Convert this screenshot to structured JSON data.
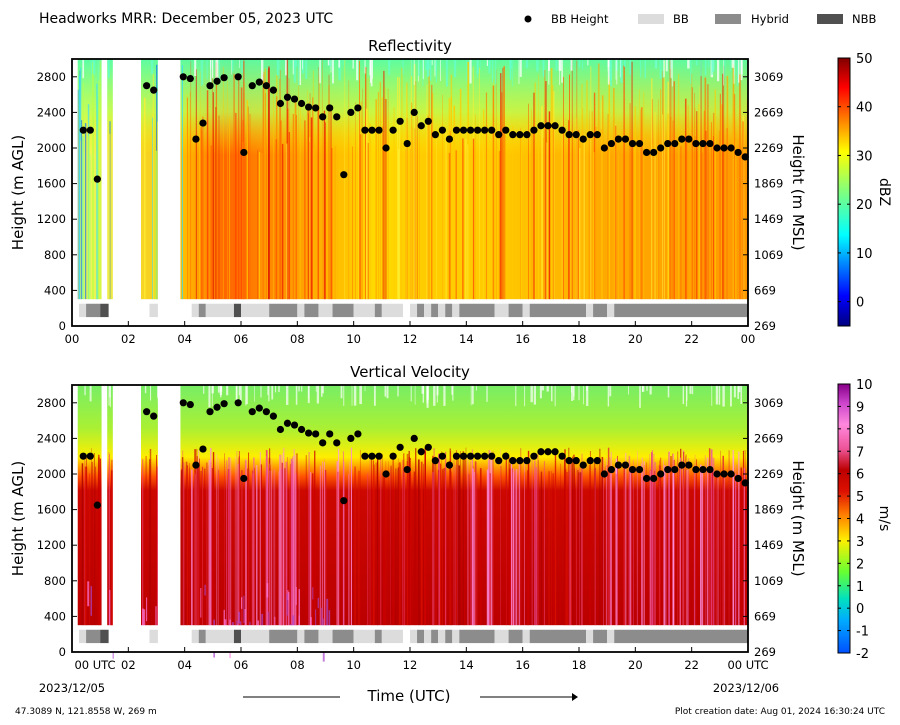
{
  "header": {
    "title": "Headworks MRR:  December 05, 2023 UTC",
    "legend": [
      {
        "label": "BB Height",
        "kind": "dot",
        "color": "#000000"
      },
      {
        "label": "BB",
        "kind": "rect",
        "color": "#dcdcdc"
      },
      {
        "label": "Hybrid",
        "kind": "rect",
        "color": "#8c8c8c"
      },
      {
        "label": "NBB",
        "kind": "rect",
        "color": "#505050"
      }
    ]
  },
  "chart_data": [
    {
      "type": "heatmap",
      "title": "Reflectivity",
      "ylabel": "Height (m AGL)",
      "y2label": "Height (m MSL)",
      "colorbar_label": "dBZ",
      "ylim": [
        0,
        3000
      ],
      "yticks": [
        0,
        400,
        800,
        1200,
        1600,
        2000,
        2400,
        2800
      ],
      "y2ticks": [
        269,
        669,
        1069,
        1469,
        1869,
        2269,
        2669,
        3069
      ],
      "xlim": [
        0,
        24
      ],
      "xtick_labels": [
        "00",
        "02",
        "04",
        "06",
        "08",
        "10",
        "12",
        "14",
        "16",
        "18",
        "20",
        "22",
        "00"
      ],
      "colorbar": {
        "min": -5,
        "max": 50,
        "ticks": [
          0,
          10,
          20,
          30,
          40,
          50
        ]
      },
      "bb_height_m_agl": [
        [
          0.4,
          2200
        ],
        [
          0.65,
          2200
        ],
        [
          0.9,
          1650
        ],
        [
          2.65,
          2700
        ],
        [
          2.9,
          2650
        ],
        [
          3.95,
          2800
        ],
        [
          4.2,
          2780
        ],
        [
          4.4,
          2100
        ],
        [
          4.65,
          2280
        ],
        [
          4.9,
          2700
        ],
        [
          5.15,
          2750
        ],
        [
          5.4,
          2790
        ],
        [
          5.9,
          2800
        ],
        [
          6.1,
          1950
        ],
        [
          6.4,
          2700
        ],
        [
          6.65,
          2740
        ],
        [
          6.9,
          2700
        ],
        [
          7.15,
          2650
        ],
        [
          7.4,
          2500
        ],
        [
          7.65,
          2570
        ],
        [
          7.9,
          2550
        ],
        [
          8.15,
          2500
        ],
        [
          8.4,
          2460
        ],
        [
          8.65,
          2450
        ],
        [
          8.9,
          2350
        ],
        [
          9.15,
          2450
        ],
        [
          9.4,
          2350
        ],
        [
          9.65,
          1700
        ],
        [
          9.9,
          2400
        ],
        [
          10.15,
          2450
        ],
        [
          10.4,
          2200
        ],
        [
          10.65,
          2200
        ],
        [
          10.9,
          2200
        ],
        [
          11.15,
          2000
        ],
        [
          11.4,
          2200
        ],
        [
          11.65,
          2300
        ],
        [
          11.9,
          2050
        ],
        [
          12.15,
          2400
        ],
        [
          12.4,
          2250
        ],
        [
          12.65,
          2300
        ],
        [
          12.9,
          2150
        ],
        [
          13.15,
          2200
        ],
        [
          13.4,
          2100
        ],
        [
          13.65,
          2200
        ],
        [
          13.9,
          2200
        ],
        [
          14.15,
          2200
        ],
        [
          14.4,
          2200
        ],
        [
          14.65,
          2200
        ],
        [
          14.9,
          2200
        ],
        [
          15.15,
          2150
        ],
        [
          15.4,
          2200
        ],
        [
          15.65,
          2150
        ],
        [
          15.9,
          2150
        ],
        [
          16.15,
          2150
        ],
        [
          16.4,
          2200
        ],
        [
          16.65,
          2250
        ],
        [
          16.9,
          2250
        ],
        [
          17.15,
          2250
        ],
        [
          17.4,
          2200
        ],
        [
          17.65,
          2150
        ],
        [
          17.9,
          2150
        ],
        [
          18.15,
          2100
        ],
        [
          18.4,
          2150
        ],
        [
          18.65,
          2150
        ],
        [
          18.9,
          2000
        ],
        [
          19.15,
          2050
        ],
        [
          19.4,
          2100
        ],
        [
          19.65,
          2100
        ],
        [
          19.9,
          2050
        ],
        [
          20.15,
          2050
        ],
        [
          20.4,
          1950
        ],
        [
          20.65,
          1950
        ],
        [
          20.9,
          2000
        ],
        [
          21.15,
          2050
        ],
        [
          21.4,
          2050
        ],
        [
          21.65,
          2100
        ],
        [
          21.9,
          2100
        ],
        [
          22.15,
          2050
        ],
        [
          22.4,
          2050
        ],
        [
          22.65,
          2050
        ],
        [
          22.9,
          2000
        ],
        [
          23.15,
          2000
        ],
        [
          23.4,
          2000
        ],
        [
          23.65,
          1950
        ],
        [
          23.9,
          1900
        ]
      ],
      "precip_type_bar": [
        {
          "t0": 0.25,
          "t1": 0.5,
          "type": "BB"
        },
        {
          "t0": 0.5,
          "t1": 1.0,
          "type": "Hybrid"
        },
        {
          "t0": 1.0,
          "t1": 1.3,
          "type": "NBB"
        },
        {
          "t0": 2.75,
          "t1": 3.05,
          "type": "BB"
        },
        {
          "t0": 4.25,
          "t1": 4.5,
          "type": "BB"
        },
        {
          "t0": 4.5,
          "t1": 4.75,
          "type": "Hybrid"
        },
        {
          "t0": 4.75,
          "t1": 5.75,
          "type": "BB"
        },
        {
          "t0": 5.75,
          "t1": 6.0,
          "type": "NBB"
        },
        {
          "t0": 6.0,
          "t1": 7.0,
          "type": "BB"
        },
        {
          "t0": 7.0,
          "t1": 8.0,
          "type": "Hybrid"
        },
        {
          "t0": 8.0,
          "t1": 8.25,
          "type": "BB"
        },
        {
          "t0": 8.25,
          "t1": 8.75,
          "type": "Hybrid"
        },
        {
          "t0": 8.75,
          "t1": 9.25,
          "type": "BB"
        },
        {
          "t0": 9.25,
          "t1": 10.0,
          "type": "Hybrid"
        },
        {
          "t0": 10.0,
          "t1": 10.75,
          "type": "BB"
        },
        {
          "t0": 10.75,
          "t1": 11.0,
          "type": "Hybrid"
        },
        {
          "t0": 11.0,
          "t1": 11.75,
          "type": "BB"
        },
        {
          "t0": 12.0,
          "t1": 12.25,
          "type": "BB"
        },
        {
          "t0": 12.25,
          "t1": 12.5,
          "type": "Hybrid"
        },
        {
          "t0": 12.5,
          "t1": 12.75,
          "type": "BB"
        },
        {
          "t0": 12.75,
          "t1": 13.0,
          "type": "Hybrid"
        },
        {
          "t0": 13.0,
          "t1": 13.25,
          "type": "BB"
        },
        {
          "t0": 13.25,
          "t1": 13.5,
          "type": "Hybrid"
        },
        {
          "t0": 13.5,
          "t1": 13.75,
          "type": "BB"
        },
        {
          "t0": 13.75,
          "t1": 15.0,
          "type": "Hybrid"
        },
        {
          "t0": 15.0,
          "t1": 15.5,
          "type": "BB"
        },
        {
          "t0": 15.5,
          "t1": 16.0,
          "type": "Hybrid"
        },
        {
          "t0": 16.0,
          "t1": 16.25,
          "type": "BB"
        },
        {
          "t0": 16.25,
          "t1": 18.25,
          "type": "Hybrid"
        },
        {
          "t0": 18.25,
          "t1": 18.5,
          "type": "BB"
        },
        {
          "t0": 18.5,
          "t1": 19.0,
          "type": "Hybrid"
        },
        {
          "t0": 19.0,
          "t1": 19.25,
          "type": "BB"
        },
        {
          "t0": 19.25,
          "t1": 24.0,
          "type": "Hybrid"
        }
      ]
    },
    {
      "type": "heatmap",
      "title": "Vertical Velocity",
      "ylabel": "Height (m AGL)",
      "y2label": "Height (m MSL)",
      "colorbar_label": "m/s",
      "ylim": [
        0,
        3000
      ],
      "yticks": [
        0,
        400,
        800,
        1200,
        1600,
        2000,
        2400,
        2800
      ],
      "y2ticks": [
        269,
        669,
        1069,
        1469,
        1869,
        2269,
        2669,
        3069
      ],
      "xlim": [
        0,
        24
      ],
      "xtick_labels": [
        "00 UTC",
        "02",
        "04",
        "06",
        "08",
        "10",
        "12",
        "14",
        "16",
        "18",
        "20",
        "22",
        "00 UTC"
      ],
      "colorbar": {
        "min": -2,
        "max": 10,
        "ticks": [
          -2,
          -1,
          0,
          1,
          2,
          3,
          4,
          5,
          6,
          7,
          8,
          9,
          10
        ]
      },
      "bb_height_m_agl": "same as Reflectivity",
      "precip_type_bar": "same as Reflectivity"
    }
  ],
  "footer": {
    "start_date": "2023/12/05",
    "end_date": "2023/12/06",
    "xlabel": "Time (UTC)",
    "location": "47.3089 N, 121.8558 W, 269 m",
    "creation": "Plot creation date: Aug 01, 2024 16:30:24 UTC"
  },
  "colors": {
    "bb": "#dcdcdc",
    "hybrid": "#8c8c8c",
    "nbb": "#505050",
    "bar_bg": "#ffffff"
  }
}
